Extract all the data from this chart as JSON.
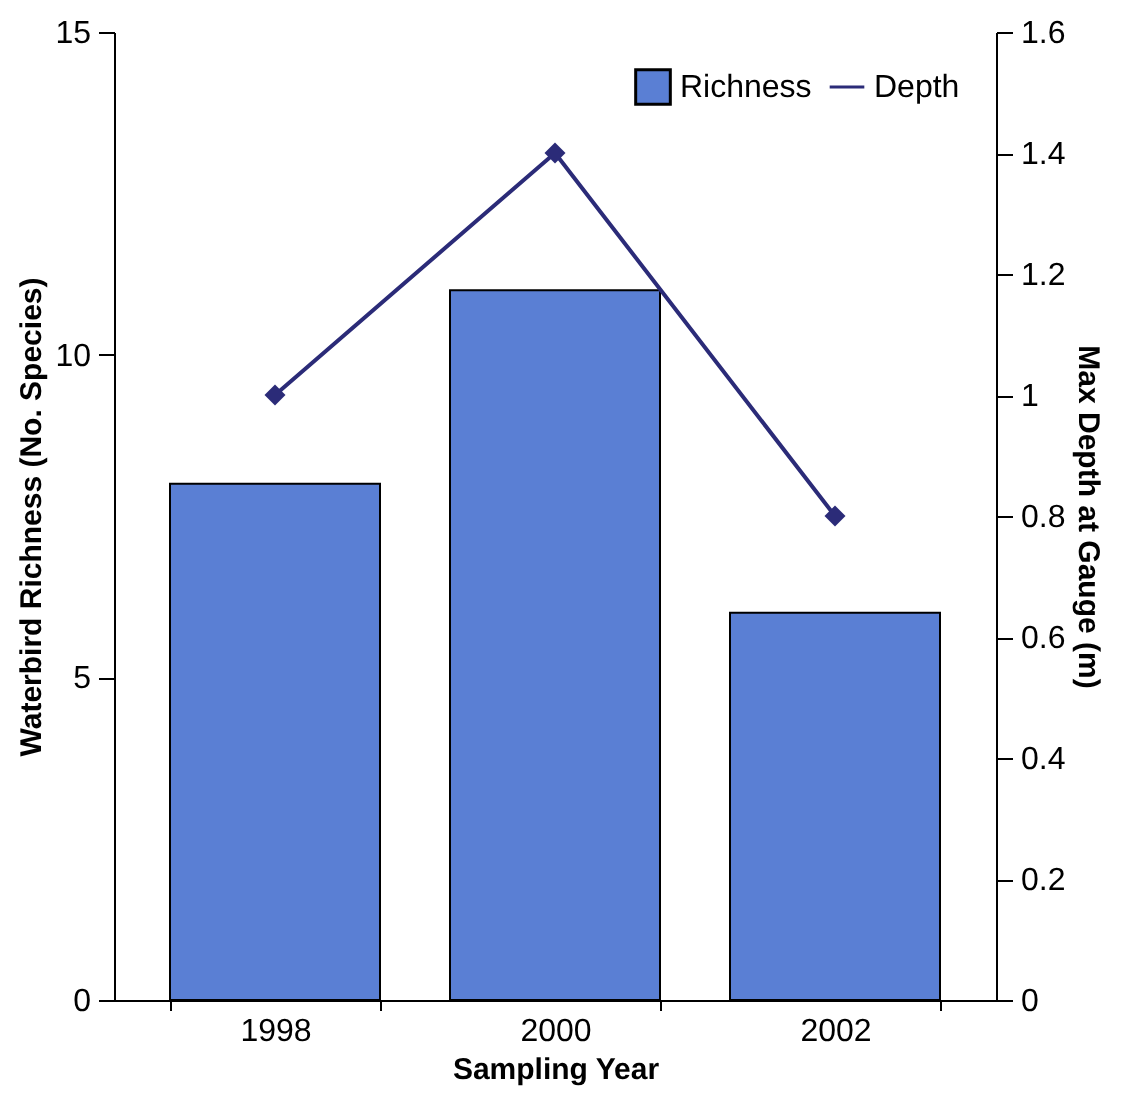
{
  "chart_data": {
    "type": "bar",
    "xlabel": "Sampling Year",
    "ylabel": "Waterbird Richness (No. Species)",
    "y2label": "Max Depth at Gauge (m)",
    "categories": [
      "1998",
      "2000",
      "2002"
    ],
    "series": [
      {
        "name": "Richness",
        "color": "#5a7fd4",
        "values": [
          8,
          11,
          6
        ]
      },
      {
        "name": "Depth",
        "type": "line",
        "axis": "y2",
        "color": "#2b2b78",
        "values": [
          1.0,
          1.4,
          0.8
        ],
        "marker": "diamond",
        "line_style": "solid"
      }
    ],
    "ylim": [
      0,
      15
    ],
    "yticks": [
      0,
      5,
      10,
      15
    ],
    "y2lim": [
      0,
      1.6
    ],
    "y2ticks": [
      0,
      0.2,
      0.4,
      0.6,
      0.8,
      1,
      1.2,
      1.4,
      1.6
    ],
    "grid": false,
    "legend": "top right"
  }
}
